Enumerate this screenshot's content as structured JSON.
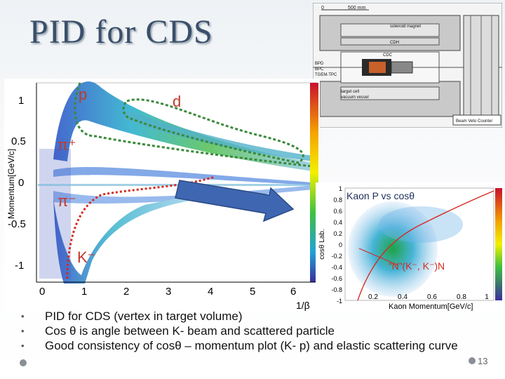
{
  "slide": {
    "title": "PID for CDS",
    "page_number": "13",
    "bullets": [
      "PID for CDS  (vertex in target volume)",
      "Cos θ  is angle between  K-    beam and scattered particle",
      "Good consistency  of cosθ – momentum plot (K- p) and elastic scattering curve"
    ],
    "bullet_marker": "•"
  },
  "pid_plot": {
    "ylabel": "Momentum[GeV/c]",
    "xlabel": "1/β",
    "x_ticks": [
      "0",
      "1",
      "2",
      "3",
      "4",
      "5",
      "6"
    ],
    "y_ticks": [
      "1",
      "0.5",
      "0",
      "-0.5",
      "-1"
    ],
    "particle_labels": {
      "p": "p",
      "d": "d",
      "pi_plus": "π⁺",
      "pi_minus": "π⁻",
      "k_minus": "K⁻"
    }
  },
  "detector": {
    "scale_0": "0",
    "scale_500": "500 mm",
    "labels": [
      "solenoid magnet",
      "CDH",
      "CDC",
      "BPD",
      "BPC",
      "TGEM-TPC",
      "target cell",
      "vacuum vessel",
      "Beam Veto Counter"
    ]
  },
  "kaon_plot": {
    "title": "Kaon P vs cosθ",
    "ylabel": "cosθ  Lab.",
    "xlabel": "Kaon Momentum[GeV/c]",
    "x_ticks": [
      "0.2",
      "0.4",
      "0.6",
      "0.8",
      "1"
    ],
    "y_ticks": [
      "1",
      "0.8",
      "0.6",
      "0.4",
      "0.2",
      "0",
      "-0.2",
      "-0.4",
      "-0.6",
      "-0.8",
      "-1"
    ],
    "annotation": "”N”(K⁻, K⁻)N"
  },
  "colors": {
    "title": "#3a4f6a",
    "arrow_fill": "#3f66b0",
    "arrow_stroke": "#2b4a86",
    "proton_band_dashed": "#3a8a3a",
    "negative_band_dashed": "#d42a1f",
    "annotation_red": "#d42a1f"
  }
}
